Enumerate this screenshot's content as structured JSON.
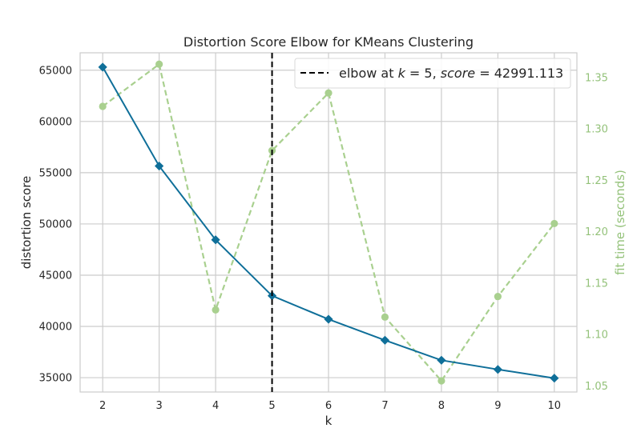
{
  "chart_data": {
    "type": "line",
    "title": "Distortion Score Elbow for KMeans Clustering",
    "xlabel": "k",
    "ylabel": "distortion score",
    "y2label": "fit time (seconds)",
    "x": [
      2,
      3,
      4,
      5,
      6,
      7,
      8,
      9,
      10
    ],
    "xlim": [
      1.6,
      10.4
    ],
    "ylim": [
      33600,
      66700
    ],
    "y2lim": [
      1.0441,
      1.3741
    ],
    "xticks": [
      2,
      3,
      4,
      5,
      6,
      7,
      8,
      9,
      10
    ],
    "yticks": [
      35000,
      40000,
      45000,
      50000,
      55000,
      60000,
      65000
    ],
    "y2ticks": [
      1.05,
      1.1,
      1.15,
      1.2,
      1.25,
      1.3,
      1.35
    ],
    "grid": true,
    "series": [
      {
        "role": "distortion",
        "axis": "left",
        "values": [
          65300,
          55650,
          48450,
          42991.113,
          40700,
          38650,
          36700,
          35800,
          34950
        ],
        "color": "#0f6f99",
        "style": "solid",
        "marker": "diamond"
      },
      {
        "role": "fit_time",
        "axis": "right",
        "values": [
          1.322,
          1.363,
          1.124,
          1.279,
          1.335,
          1.117,
          1.055,
          1.137,
          1.208
        ],
        "color": "#a9d08f",
        "style": "dashed",
        "marker": "circle"
      }
    ],
    "elbow": {
      "k": 5,
      "score": "42991.113",
      "color": "#000000",
      "style": "dashed"
    },
    "legend": {
      "position": "top-right",
      "prefix": "elbow at ",
      "k_symbol": "k",
      "k_value": " = 5, ",
      "score_symbol": "score",
      "score_value": " = 42991.113"
    }
  }
}
